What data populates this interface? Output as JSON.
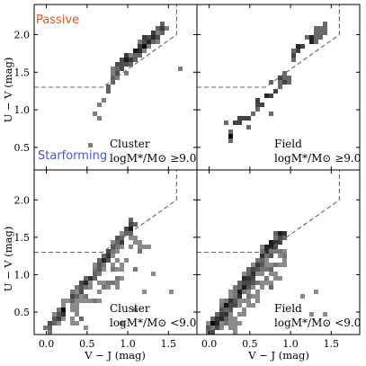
{
  "chart_data": {
    "type": "heatmap",
    "xlabel": "V − J (mag)",
    "ylabel": "U − V (mag)",
    "xlim": [
      -0.15,
      1.85
    ],
    "ylim": [
      0.2,
      2.4
    ],
    "xticks": [
      "0.0",
      "0.5",
      "1.0",
      "1.5"
    ],
    "yticks": [
      "0.5",
      "1.0",
      "1.5",
      "2.0"
    ],
    "region_labels": {
      "passive": {
        "text": "Passive",
        "color": "#e8531e"
      },
      "starforming": {
        "text": "Starforming",
        "color": "#3f5bd0"
      }
    },
    "selection_boundary": [
      [
        -0.15,
        1.3
      ],
      [
        0.69,
        1.3
      ],
      [
        1.6,
        2.0
      ],
      [
        1.6,
        2.4
      ]
    ],
    "panels": [
      {
        "id": "cluster-high",
        "title": "Cluster",
        "mass_label": "logM*/M⊙ ≥9.0",
        "clumps": [
          {
            "from": [
              0.85,
              1.5
            ],
            "to": [
              1.45,
              2.12
            ],
            "width": 0.09,
            "n": 110
          },
          {
            "from": [
              0.72,
              1.22
            ],
            "to": [
              0.9,
              1.5
            ],
            "width": 0.07,
            "n": 12
          }
        ],
        "scatter": [
          [
            0.6,
            0.95
          ],
          [
            0.63,
            0.88
          ],
          [
            0.65,
            1.05
          ],
          [
            0.55,
            0.55
          ],
          [
            1.62,
            1.57
          ],
          [
            0.7,
            1.1
          ]
        ]
      },
      {
        "id": "field-high",
        "title": "Field",
        "mass_label": "logM*/M⊙ ≥9.0",
        "clumps": [
          {
            "from": [
              1.0,
              1.7
            ],
            "to": [
              1.45,
              2.12
            ],
            "width": 0.08,
            "n": 28
          },
          {
            "from": [
              0.2,
              0.65
            ],
            "to": [
              1.0,
              1.45
            ],
            "width": 0.18,
            "n": 45
          }
        ],
        "scatter": []
      },
      {
        "id": "cluster-low",
        "title": "Cluster",
        "mass_label": "logM*/M⊙ <9.0",
        "clumps": [
          {
            "from": [
              0.0,
              0.25
            ],
            "to": [
              1.1,
              1.72
            ],
            "width": 0.08,
            "n": 220
          },
          {
            "from": [
              0.3,
              0.35
            ],
            "to": [
              1.2,
              1.45
            ],
            "width": 0.22,
            "n": 55
          }
        ],
        "scatter": [
          [
            1.55,
            0.75
          ],
          [
            1.1,
            0.55
          ],
          [
            1.2,
            0.8
          ],
          [
            0.5,
            0.3
          ],
          [
            1.3,
            1.0
          ],
          [
            0.95,
            0.35
          ]
        ]
      },
      {
        "id": "field-low",
        "title": "Field",
        "mass_label": "logM*/M⊙ <9.0",
        "clumps": [
          {
            "from": [
              0.0,
              0.22
            ],
            "to": [
              0.92,
              1.6
            ],
            "width": 0.1,
            "n": 330
          },
          {
            "from": [
              0.2,
              0.3
            ],
            "to": [
              0.95,
              1.3
            ],
            "width": 0.22,
            "n": 80
          }
        ],
        "scatter": [
          [
            1.3,
            0.8
          ],
          [
            1.4,
            0.5
          ],
          [
            1.15,
            0.7
          ],
          [
            1.25,
            0.45
          ]
        ]
      }
    ]
  }
}
